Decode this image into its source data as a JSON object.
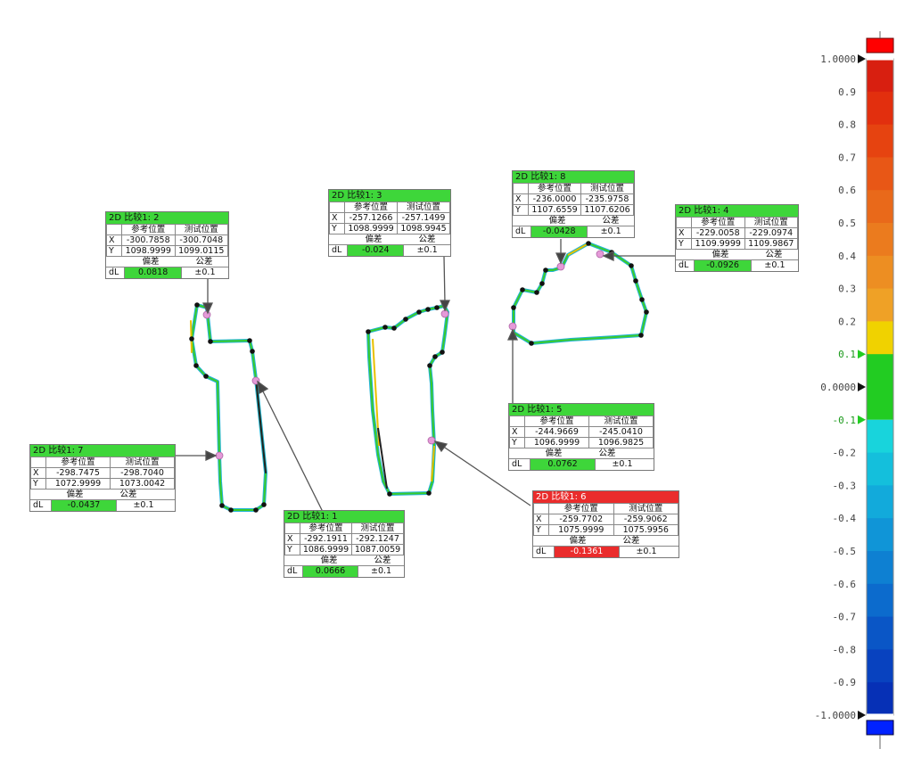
{
  "callouts": [
    {
      "title": "2D 比较1: 2",
      "state": "ok",
      "ref_label": "参考位置",
      "test_label": "测试位置",
      "x_ref": "-300.7858",
      "x_test": "-300.7048",
      "y_ref": "1098.9999",
      "y_test": "1099.0115",
      "dev_label": "偏差",
      "tol_label": "公差",
      "dl": "0.0818",
      "tol": "±0.1"
    },
    {
      "title": "2D 比较1: 3",
      "state": "ok",
      "ref_label": "参考位置",
      "test_label": "测试位置",
      "x_ref": "-257.1266",
      "x_test": "-257.1499",
      "y_ref": "1098.9999",
      "y_test": "1098.9945",
      "dev_label": "偏差",
      "tol_label": "公差",
      "dl": "-0.024",
      "tol": "±0.1"
    },
    {
      "title": "2D 比较1: 8",
      "state": "ok",
      "ref_label": "参考位置",
      "test_label": "测试位置",
      "x_ref": "-236.0000",
      "x_test": "-235.9758",
      "y_ref": "1107.6559",
      "y_test": "1107.6206",
      "dev_label": "偏差",
      "tol_label": "公差",
      "dl": "-0.0428",
      "tol": "±0.1"
    },
    {
      "title": "2D 比较1: 4",
      "state": "ok",
      "ref_label": "参考位置",
      "test_label": "测试位置",
      "x_ref": "-229.0058",
      "x_test": "-229.0974",
      "y_ref": "1109.9999",
      "y_test": "1109.9867",
      "dev_label": "偏差",
      "tol_label": "公差",
      "dl": "-0.0926",
      "tol": "±0.1"
    },
    {
      "title": "2D 比较1: 7",
      "state": "ok",
      "ref_label": "参考位置",
      "test_label": "测试位置",
      "x_ref": "-298.7475",
      "x_test": "-298.7040",
      "y_ref": "1072.9999",
      "y_test": "1073.0042",
      "dev_label": "偏差",
      "tol_label": "公差",
      "dl": "-0.0437",
      "tol": "±0.1"
    },
    {
      "title": "2D 比较1: 5",
      "state": "ok",
      "ref_label": "参考位置",
      "test_label": "测试位置",
      "x_ref": "-244.9669",
      "x_test": "-245.0410",
      "y_ref": "1096.9999",
      "y_test": "1096.9825",
      "dev_label": "偏差",
      "tol_label": "公差",
      "dl": "0.0762",
      "tol": "±0.1"
    },
    {
      "title": "2D 比较1: 1",
      "state": "ok",
      "ref_label": "参考位置",
      "test_label": "测试位置",
      "x_ref": "-292.1911",
      "x_test": "-292.1247",
      "y_ref": "1086.9999",
      "y_test": "1087.0059",
      "dev_label": "偏差",
      "tol_label": "公差",
      "dl": "0.0666",
      "tol": "±0.1"
    },
    {
      "title": "2D 比较1: 6",
      "state": "bad",
      "ref_label": "参考位置",
      "test_label": "测试位置",
      "x_ref": "-259.7702",
      "x_test": "-259.9062",
      "y_ref": "1075.9999",
      "y_test": "1075.9956",
      "dev_label": "偏差",
      "tol_label": "公差",
      "dl": "-0.1361",
      "tol": "±0.1"
    }
  ],
  "axis": {
    "x": "X",
    "y": "Y",
    "dl": "dL"
  },
  "scale": {
    "ticks": [
      "1.0000",
      "0.9",
      "0.8",
      "0.7",
      "0.6",
      "0.5",
      "0.4",
      "0.3",
      "0.2",
      "0.1",
      "0.0000",
      "-0.1",
      "-0.2",
      "-0.3",
      "-0.4",
      "-0.5",
      "-0.6",
      "-0.7",
      "-0.8",
      "-0.9",
      "-1.0000"
    ],
    "tolerance_ticks": [
      "0.1",
      "-0.1"
    ],
    "colors": {
      "over": "#ff0000",
      "under": "#0022ff",
      "in_tol": "#22cc22",
      "tol_marker": "#22cc22"
    }
  }
}
